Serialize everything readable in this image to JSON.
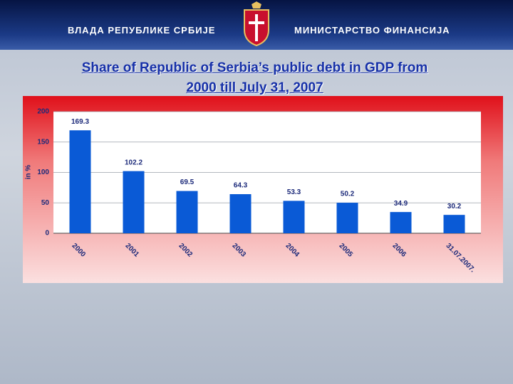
{
  "header": {
    "left": "ВЛАДА РЕПУБЛИКЕ СРБИЈЕ",
    "right": "МИНИСТАРСТВО ФИНАНСИЈА"
  },
  "chart_data": {
    "type": "bar",
    "title": "Share of Republic of Serbia’s public debt in GDP from 2000 till July 31, 2007",
    "ylabel": "in %",
    "categories": [
      "2000",
      "2001",
      "2002",
      "2003",
      "2004",
      "2005",
      "2006",
      "31.07.2007."
    ],
    "values": [
      169.3,
      102.2,
      69.5,
      64.3,
      53.3,
      50.2,
      34.9,
      30.2
    ],
    "color": "#0a5ad6",
    "ylim": [
      0,
      200
    ],
    "yticks": [
      0,
      50,
      100,
      150,
      200
    ],
    "grid": true
  }
}
